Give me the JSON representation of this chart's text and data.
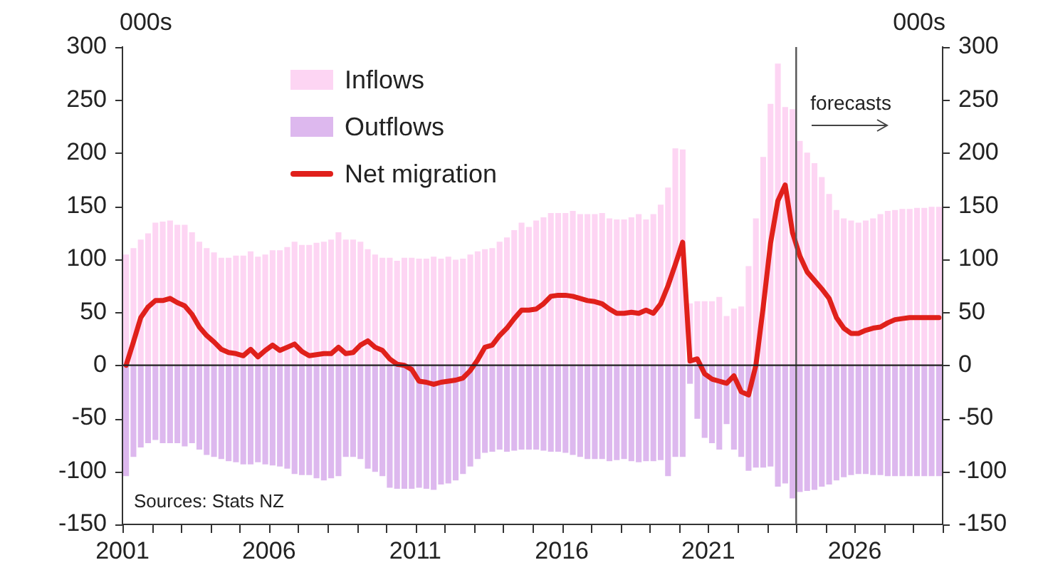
{
  "chart_data": {
    "type": "bar",
    "ylabel": "000s",
    "y2label": "000s",
    "x": [
      2001.125,
      2001.375,
      2001.625,
      2001.875,
      2002.125,
      2002.375,
      2002.625,
      2002.875,
      2003.125,
      2003.375,
      2003.625,
      2003.875,
      2004.125,
      2004.375,
      2004.625,
      2004.875,
      2005.125,
      2005.375,
      2005.625,
      2005.875,
      2006.125,
      2006.375,
      2006.625,
      2006.875,
      2007.125,
      2007.375,
      2007.625,
      2007.875,
      2008.125,
      2008.375,
      2008.625,
      2008.875,
      2009.125,
      2009.375,
      2009.625,
      2009.875,
      2010.125,
      2010.375,
      2010.625,
      2010.875,
      2011.125,
      2011.375,
      2011.625,
      2011.875,
      2012.125,
      2012.375,
      2012.625,
      2012.875,
      2013.125,
      2013.375,
      2013.625,
      2013.875,
      2014.125,
      2014.375,
      2014.625,
      2014.875,
      2015.125,
      2015.375,
      2015.625,
      2015.875,
      2016.125,
      2016.375,
      2016.625,
      2016.875,
      2017.125,
      2017.375,
      2017.625,
      2017.875,
      2018.125,
      2018.375,
      2018.625,
      2018.875,
      2019.125,
      2019.375,
      2019.625,
      2019.875,
      2020.125,
      2020.375,
      2020.625,
      2020.875,
      2021.125,
      2021.375,
      2021.625,
      2021.875,
      2022.125,
      2022.375,
      2022.625,
      2022.875,
      2023.125,
      2023.375,
      2023.625,
      2023.875,
      2024.125,
      2024.375,
      2024.625,
      2024.875,
      2025.125,
      2025.375,
      2025.625,
      2025.875,
      2026.125,
      2026.375,
      2026.625,
      2026.875,
      2027.125,
      2027.375,
      2027.625,
      2027.875,
      2028.125,
      2028.375,
      2028.625,
      2028.875
    ],
    "series": [
      {
        "name": "Inflows",
        "color": "#fdd5f3",
        "values": [
          104,
          110,
          118,
          124,
          134,
          135,
          136,
          132,
          132,
          125,
          116,
          110,
          106,
          101,
          101,
          103,
          103,
          107,
          102,
          104,
          108,
          108,
          111,
          116,
          113,
          113,
          115,
          116,
          118,
          125,
          118,
          118,
          116,
          109,
          104,
          101,
          101,
          98,
          101,
          101,
          100,
          100,
          102,
          100,
          102,
          99,
          100,
          104,
          107,
          109,
          110,
          116,
          120,
          127,
          134,
          130,
          136,
          139,
          143,
          143,
          143,
          145,
          142,
          142,
          142,
          143,
          138,
          137,
          137,
          139,
          142,
          137,
          142,
          151,
          167,
          204,
          203,
          58,
          60,
          60,
          60,
          64,
          46,
          53,
          55,
          93,
          138,
          196,
          246,
          284,
          243,
          241,
          211,
          200,
          190,
          177,
          161,
          146,
          138,
          136,
          134,
          136,
          138,
          142,
          145,
          146,
          147,
          147,
          148,
          148,
          149,
          149
        ]
      },
      {
        "name": "Outflows",
        "color": "#ddb8ee",
        "values": [
          -104,
          -86,
          -77,
          -73,
          -70,
          -73,
          -73,
          -73,
          -76,
          -73,
          -79,
          -84,
          -86,
          -88,
          -90,
          -91,
          -93,
          -93,
          -91,
          -93,
          -94,
          -95,
          -97,
          -102,
          -103,
          -103,
          -106,
          -108,
          -106,
          -104,
          -86,
          -86,
          -88,
          -97,
          -100,
          -104,
          -115,
          -116,
          -116,
          -116,
          -115,
          -116,
          -117,
          -112,
          -111,
          -108,
          -102,
          -95,
          -88,
          -82,
          -81,
          -79,
          -81,
          -80,
          -79,
          -79,
          -79,
          -80,
          -81,
          -81,
          -82,
          -84,
          -86,
          -88,
          -88,
          -88,
          -90,
          -89,
          -88,
          -90,
          -91,
          -90,
          -90,
          -89,
          -104,
          -86,
          -86,
          -17,
          -50,
          -68,
          -73,
          -79,
          -55,
          -79,
          -86,
          -99,
          -96,
          -96,
          -95,
          -114,
          -111,
          -125,
          -119,
          -118,
          -117,
          -114,
          -112,
          -108,
          -105,
          -103,
          -102,
          -102,
          -103,
          -103,
          -104,
          -104,
          -104,
          -104,
          -104,
          -104,
          -104,
          -104
        ]
      },
      {
        "name": "Net migration",
        "type": "line",
        "color": "#e0201b",
        "values": [
          0,
          22,
          45,
          55,
          61,
          61,
          63,
          59,
          56,
          48,
          36,
          28,
          22,
          15,
          12,
          11,
          9,
          15,
          8,
          14,
          19,
          14,
          17,
          20,
          13,
          9,
          10,
          11,
          11,
          17,
          11,
          12,
          19,
          23,
          17,
          14,
          6,
          1,
          0,
          -4,
          -15,
          -16,
          -18,
          -16,
          -15,
          -14,
          -12,
          -5,
          5,
          17,
          19,
          28,
          35,
          44,
          52,
          52,
          53,
          58,
          65,
          66,
          66,
          65,
          63,
          61,
          60,
          58,
          53,
          49,
          49,
          50,
          49,
          52,
          49,
          58,
          75,
          95,
          116,
          4,
          6,
          -8,
          -13,
          -15,
          -17,
          -10,
          -25,
          -28,
          0,
          55,
          115,
          155,
          170,
          125,
          103,
          88,
          80,
          72,
          63,
          45,
          35,
          30,
          30,
          33,
          35,
          36,
          40,
          43,
          44,
          45,
          45,
          45,
          45,
          45
        ]
      }
    ],
    "xlim": [
      2001,
      2029
    ],
    "xticks": [
      2001,
      {
        "value": 2002,
        "label": null
      },
      {
        "value": 2003,
        "label": null
      },
      {
        "value": 2004,
        "label": null
      },
      {
        "value": 2005,
        "label": null
      },
      2006,
      {
        "value": 2007,
        "label": null
      },
      {
        "value": 2008,
        "label": null
      },
      {
        "value": 2009,
        "label": null
      },
      {
        "value": 2010,
        "label": null
      },
      2011,
      {
        "value": 2012,
        "label": null
      },
      {
        "value": 2013,
        "label": null
      },
      {
        "value": 2014,
        "label": null
      },
      {
        "value": 2015,
        "label": null
      },
      2016,
      {
        "value": 2017,
        "label": null
      },
      {
        "value": 2018,
        "label": null
      },
      {
        "value": 2019,
        "label": null
      },
      {
        "value": 2020,
        "label": null
      },
      2021,
      {
        "value": 2022,
        "label": null
      },
      {
        "value": 2023,
        "label": null
      },
      {
        "value": 2024,
        "label": null
      },
      {
        "value": 2025,
        "label": null
      },
      2026,
      {
        "value": 2027,
        "label": null
      },
      {
        "value": 2028,
        "label": null
      },
      {
        "value": 2029,
        "label": null
      }
    ],
    "ylim": [
      -150,
      300
    ],
    "yticks": [
      -150,
      -100,
      -50,
      0,
      50,
      100,
      150,
      200,
      250,
      300
    ],
    "y2lim": [
      -150,
      300
    ],
    "y2ticks": [
      -150,
      -100,
      -50,
      0,
      50,
      100,
      150,
      200,
      250,
      300
    ],
    "ref_lines": [
      {
        "axis": "y",
        "value": 0,
        "color": "#222222"
      },
      {
        "axis": "x",
        "value": 2024,
        "label": "forecasts",
        "color": "#555555"
      }
    ],
    "annotations": [
      "Sources: Stats NZ"
    ],
    "legend": "top left",
    "grid": false,
    "stacked": true
  }
}
